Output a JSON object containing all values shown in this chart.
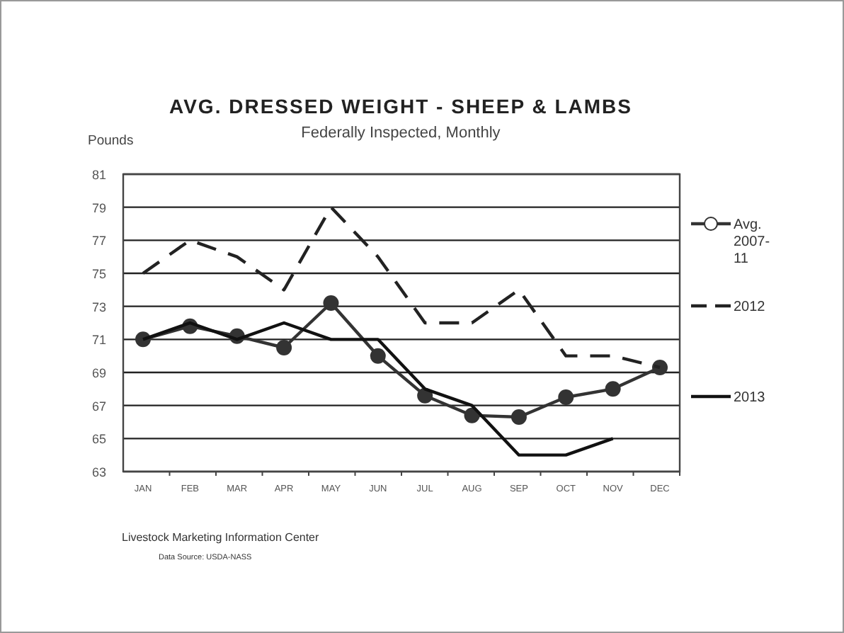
{
  "chart_data": {
    "type": "line",
    "title": "AVG. DRESSED WEIGHT - SHEEP & LAMBS",
    "subtitle": "Federally Inspected, Monthly",
    "ylabel": "Pounds",
    "categories": [
      "JAN",
      "FEB",
      "MAR",
      "APR",
      "MAY",
      "JUN",
      "JUL",
      "AUG",
      "SEP",
      "OCT",
      "NOV",
      "DEC"
    ],
    "series": [
      {
        "name": "Avg. 2007-11",
        "color": "#333333",
        "marker": "circle",
        "line_style": "solid",
        "values": [
          71,
          71.8,
          71.2,
          70.5,
          73.2,
          70,
          67.6,
          66.4,
          66.3,
          67.5,
          68,
          69.3
        ]
      },
      {
        "name": "2012",
        "color": "#222222",
        "marker": "none",
        "line_style": "dashed",
        "values": [
          75,
          77,
          76,
          74,
          79,
          76,
          72,
          72,
          74,
          70,
          70,
          69.3
        ]
      },
      {
        "name": "2013",
        "color": "#111111",
        "marker": "none",
        "line_style": "solid",
        "values": [
          71,
          72,
          71,
          72,
          71,
          71,
          68,
          67,
          64,
          64,
          65,
          null
        ]
      }
    ],
    "ylim": [
      63,
      81
    ],
    "yticks": [
      63,
      65,
      67,
      69,
      71,
      73,
      75,
      77,
      79,
      81
    ],
    "grid": "y",
    "legend": "right",
    "annotations": [
      "Livestock Marketing Information Center",
      "Data Source:  USDA-NASS"
    ]
  }
}
